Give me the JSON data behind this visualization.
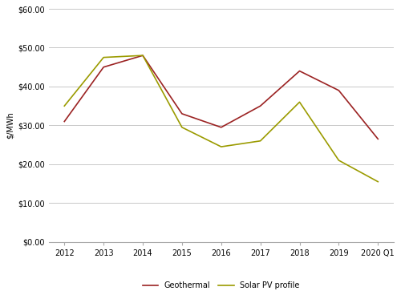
{
  "years": [
    "2012",
    "2013",
    "2014",
    "2015",
    "2016",
    "2017",
    "2018",
    "2019",
    "2020 Q1"
  ],
  "geothermal": [
    31,
    45,
    48,
    33,
    29.5,
    35,
    44,
    39,
    26.5
  ],
  "solar_pv": [
    35,
    47.5,
    48,
    29.5,
    24.5,
    26,
    36,
    21,
    15.5
  ],
  "geothermal_color": "#9B2222",
  "solar_pv_color": "#9B9B00",
  "ylim": [
    0,
    60
  ],
  "yticks": [
    0,
    10,
    20,
    30,
    40,
    50,
    60
  ],
  "ylabel": "$/MWh",
  "legend_labels": [
    "Geothermal",
    "Solar PV profile"
  ],
  "background_color": "#ffffff",
  "grid_color": "#c8c8c8",
  "tick_fontsize": 7,
  "ylabel_fontsize": 7,
  "legend_fontsize": 7
}
